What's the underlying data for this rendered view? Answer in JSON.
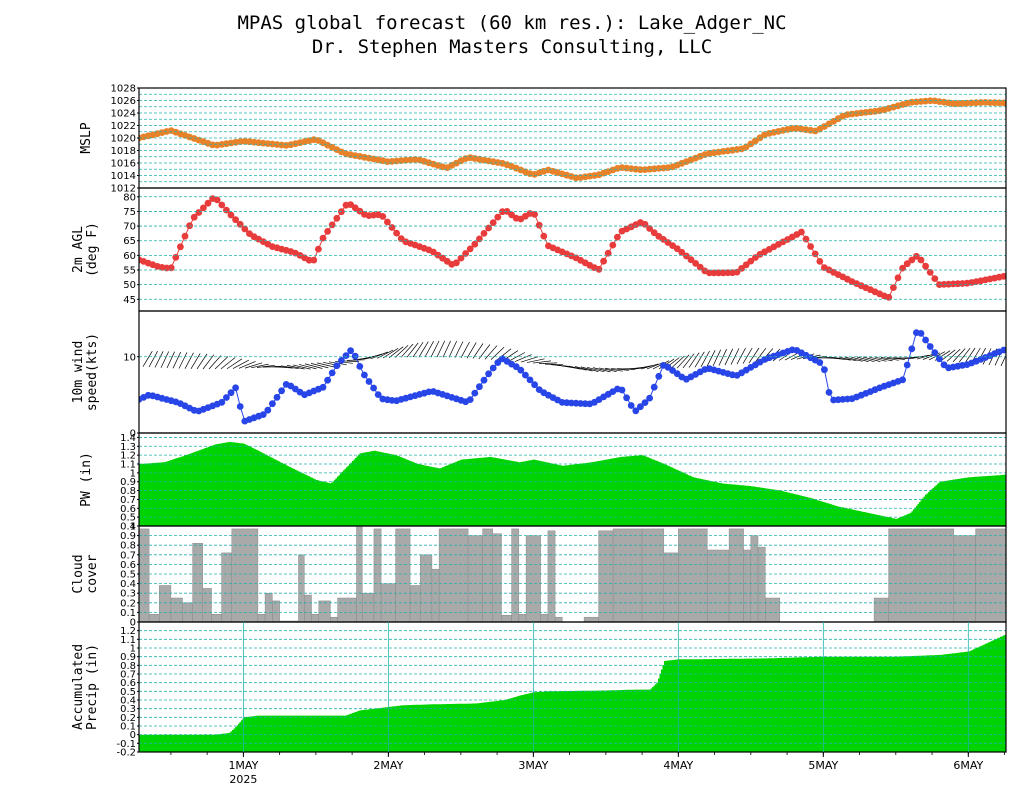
{
  "header": {
    "title": "MPAS global forecast (60 km res.): Lake_Adger_NC",
    "subtitle": "Dr. Stephen Masters Consulting, LLC"
  },
  "colors": {
    "grid": "#20b2aa",
    "mslp": "#e8822a",
    "temp": "#e83c3c",
    "wind": "#2846e8",
    "pw": "#00d400",
    "cloud": "#a9a9a9",
    "precip": "#00d400"
  },
  "chart_data": {
    "x_axis": {
      "ticks": [
        {
          "t": 1.0,
          "label": "1MAY",
          "sub": "2025"
        },
        {
          "t": 2.0,
          "label": "2MAY",
          "sub": ""
        },
        {
          "t": 3.0,
          "label": "3MAY",
          "sub": ""
        },
        {
          "t": 4.0,
          "label": "4MAY",
          "sub": ""
        },
        {
          "t": 5.0,
          "label": "5MAY",
          "sub": ""
        },
        {
          "t": 6.0,
          "label": "6MAY",
          "sub": ""
        }
      ],
      "range_days": [
        0.28,
        6.26
      ]
    },
    "panels": [
      {
        "id": "mslp",
        "type": "scatter-line",
        "ylabel": [
          "MSLP"
        ],
        "ylim": [
          1012,
          1028
        ],
        "yticks": [
          "1012",
          "1014",
          "1016",
          "1018",
          "1020",
          "1022",
          "1024",
          "1026",
          "1028"
        ],
        "t": [
          0.28,
          0.5,
          0.8,
          1.0,
          1.3,
          1.5,
          1.7,
          2.0,
          2.2,
          2.4,
          2.55,
          2.8,
          3.0,
          3.1,
          3.3,
          3.45,
          3.6,
          3.75,
          3.95,
          4.2,
          4.45,
          4.6,
          4.8,
          4.95,
          5.15,
          5.4,
          5.6,
          5.75,
          5.9,
          6.1,
          6.26
        ],
        "y": [
          1020,
          1021.2,
          1018.8,
          1019.5,
          1018.8,
          1019.8,
          1017.5,
          1016.2,
          1016.6,
          1015.2,
          1016.9,
          1015.9,
          1014.1,
          1014.9,
          1013.6,
          1014.1,
          1015.3,
          1014.9,
          1015.3,
          1017.5,
          1018.3,
          1020.6,
          1021.6,
          1021.1,
          1023.7,
          1024.4,
          1025.7,
          1026.0,
          1025.5,
          1025.7,
          1025.6
        ]
      },
      {
        "id": "temp",
        "type": "scatter-line",
        "ylabel": [
          "2m AGL",
          "(deg F)"
        ],
        "ylim": [
          41,
          83
        ],
        "yticks": [
          "45",
          "50",
          "55",
          "60",
          "65",
          "70",
          "75",
          "80"
        ],
        "t": [
          0.28,
          0.42,
          0.5,
          0.65,
          0.8,
          0.9,
          1.05,
          1.2,
          1.35,
          1.48,
          1.55,
          1.72,
          1.85,
          1.95,
          2.1,
          2.3,
          2.45,
          2.6,
          2.8,
          2.9,
          3.0,
          3.1,
          3.3,
          3.45,
          3.6,
          3.75,
          3.85,
          4.0,
          4.2,
          4.4,
          4.55,
          4.7,
          4.85,
          5.0,
          5.2,
          5.45,
          5.55,
          5.65,
          5.8,
          6.0,
          6.26
        ],
        "y": [
          58.5,
          56,
          55.5,
          72.5,
          80,
          74.5,
          67,
          63,
          61,
          57.7,
          66,
          78,
          73.5,
          74,
          65,
          61.5,
          56.5,
          64,
          75.7,
          72,
          75,
          63.3,
          59,
          55,
          68,
          71.5,
          67,
          62,
          54,
          54.1,
          60,
          64,
          68,
          56,
          51,
          45.5,
          56,
          60,
          50,
          50.5,
          53
        ]
      },
      {
        "id": "wind",
        "type": "scatter-line",
        "ylabel": [
          "10m wind",
          "speed(kts)"
        ],
        "ylim": [
          0,
          16
        ],
        "yticks": [
          "0",
          "10"
        ],
        "t": [
          0.28,
          0.35,
          0.55,
          0.68,
          0.85,
          0.95,
          1.0,
          1.15,
          1.3,
          1.42,
          1.55,
          1.65,
          1.75,
          1.82,
          1.95,
          2.05,
          2.3,
          2.55,
          2.7,
          2.78,
          2.9,
          3.05,
          3.2,
          3.4,
          3.6,
          3.7,
          3.8,
          3.9,
          4.05,
          4.2,
          4.4,
          4.6,
          4.8,
          5.0,
          5.05,
          5.2,
          5.4,
          5.55,
          5.65,
          5.75,
          5.85,
          6.0,
          6.26
        ],
        "y": [
          4.4,
          5,
          4,
          2.8,
          4,
          6,
          1.5,
          2.5,
          6.5,
          5,
          6,
          9,
          11,
          8,
          4.5,
          4.2,
          5.5,
          4,
          8,
          9.8,
          8.5,
          5.5,
          4,
          3.8,
          6,
          2.8,
          4.5,
          9,
          7,
          8.5,
          7.5,
          9.7,
          11,
          9,
          4.3,
          4.5,
          6,
          7,
          13.7,
          11,
          8.5,
          9,
          11
        ]
      },
      {
        "id": "pw",
        "type": "area-step",
        "ylabel": [
          "PW (in)"
        ],
        "ylim": [
          0.4,
          1.45
        ],
        "yticks": [
          "0.4",
          "0.5",
          "0.6",
          "0.7",
          "0.8",
          "0.9",
          "1",
          "1.1",
          "1.2",
          "1.3",
          "1.4"
        ],
        "t": [
          0.28,
          0.45,
          0.6,
          0.8,
          0.9,
          1.0,
          1.1,
          1.3,
          1.5,
          1.6,
          1.7,
          1.8,
          1.9,
          2.05,
          2.2,
          2.35,
          2.5,
          2.7,
          2.9,
          3.0,
          3.2,
          3.4,
          3.6,
          3.75,
          3.9,
          4.1,
          4.3,
          4.5,
          4.7,
          4.9,
          5.1,
          5.3,
          5.5,
          5.6,
          5.7,
          5.8,
          6.0,
          6.26
        ],
        "y": [
          1.1,
          1.12,
          1.2,
          1.32,
          1.35,
          1.33,
          1.25,
          1.08,
          0.92,
          0.88,
          1.05,
          1.22,
          1.25,
          1.2,
          1.1,
          1.05,
          1.15,
          1.18,
          1.12,
          1.15,
          1.08,
          1.12,
          1.18,
          1.2,
          1.1,
          0.95,
          0.88,
          0.85,
          0.8,
          0.72,
          0.62,
          0.55,
          0.48,
          0.55,
          0.75,
          0.9,
          0.95,
          0.98
        ]
      },
      {
        "id": "cloud",
        "type": "bar",
        "ylabel": [
          "Cloud",
          "cover"
        ],
        "ylim": [
          0,
          1
        ],
        "yticks": [
          "0",
          "0.1",
          "0.2",
          "0.3",
          "0.4",
          "0.5",
          "0.6",
          "0.7",
          "0.8",
          "0.9",
          "1"
        ],
        "bins": [
          [
            0.28,
            0.35,
            0.97
          ],
          [
            0.35,
            0.42,
            0.08
          ],
          [
            0.42,
            0.5,
            0.38
          ],
          [
            0.5,
            0.58,
            0.25
          ],
          [
            0.58,
            0.65,
            0.2
          ],
          [
            0.65,
            0.72,
            0.82
          ],
          [
            0.72,
            0.78,
            0.35
          ],
          [
            0.78,
            0.85,
            0.08
          ],
          [
            0.85,
            0.92,
            0.72
          ],
          [
            0.92,
            1.1,
            0.97
          ],
          [
            1.1,
            1.15,
            0.08
          ],
          [
            1.15,
            1.2,
            0.3
          ],
          [
            1.2,
            1.25,
            0.22
          ],
          [
            1.25,
            1.38,
            0.01
          ],
          [
            1.38,
            1.42,
            0.7
          ],
          [
            1.42,
            1.47,
            0.28
          ],
          [
            1.47,
            1.52,
            0.08
          ],
          [
            1.52,
            1.6,
            0.22
          ],
          [
            1.6,
            1.65,
            0.05
          ],
          [
            1.65,
            1.78,
            0.25
          ],
          [
            1.78,
            1.82,
            1.0
          ],
          [
            1.82,
            1.9,
            0.3
          ],
          [
            1.9,
            1.95,
            0.97
          ],
          [
            1.95,
            2.05,
            0.4
          ],
          [
            2.05,
            2.15,
            0.97
          ],
          [
            2.15,
            2.22,
            0.38
          ],
          [
            2.22,
            2.3,
            0.7
          ],
          [
            2.3,
            2.35,
            0.55
          ],
          [
            2.35,
            2.55,
            0.97
          ],
          [
            2.55,
            2.65,
            0.9
          ],
          [
            2.65,
            2.72,
            0.97
          ],
          [
            2.72,
            2.78,
            0.92
          ],
          [
            2.78,
            2.85,
            0.07
          ],
          [
            2.85,
            2.9,
            0.97
          ],
          [
            2.9,
            2.95,
            0.08
          ],
          [
            2.95,
            3.05,
            0.9
          ],
          [
            3.05,
            3.1,
            0.08
          ],
          [
            3.1,
            3.15,
            0.95
          ],
          [
            3.15,
            3.2,
            0.05
          ],
          [
            3.2,
            3.35,
            0.0
          ],
          [
            3.35,
            3.45,
            0.05
          ],
          [
            3.45,
            3.55,
            0.95
          ],
          [
            3.55,
            3.75,
            0.97
          ],
          [
            3.75,
            3.9,
            0.97
          ],
          [
            3.9,
            4.0,
            0.72
          ],
          [
            4.0,
            4.2,
            0.97
          ],
          [
            4.2,
            4.35,
            0.75
          ],
          [
            4.35,
            4.45,
            0.97
          ],
          [
            4.45,
            4.5,
            0.75
          ],
          [
            4.5,
            4.55,
            0.9
          ],
          [
            4.55,
            4.6,
            0.78
          ],
          [
            4.6,
            4.7,
            0.25
          ],
          [
            4.7,
            5.35,
            0.0
          ],
          [
            5.35,
            5.45,
            0.25
          ],
          [
            5.45,
            5.9,
            0.97
          ],
          [
            5.9,
            6.05,
            0.9
          ],
          [
            6.05,
            6.26,
            0.97
          ]
        ]
      },
      {
        "id": "precip",
        "type": "area-step",
        "ylabel": [
          "Accumulated",
          "Precip (in)"
        ],
        "ylim": [
          -0.2,
          1.3
        ],
        "yticks": [
          "-0.2",
          "-0.1",
          "0",
          "0.1",
          "0.2",
          "0.3",
          "0.4",
          "0.5",
          "0.6",
          "0.7",
          "0.8",
          "0.9",
          "1",
          "1.1",
          "1.2"
        ],
        "t": [
          0.28,
          0.8,
          0.9,
          0.95,
          1.0,
          1.1,
          1.5,
          1.7,
          1.8,
          1.9,
          2.0,
          2.1,
          2.3,
          2.6,
          2.8,
          2.9,
          3.0,
          3.1,
          3.5,
          3.7,
          3.8,
          3.85,
          3.9,
          4.0,
          4.1,
          4.6,
          5.0,
          5.5,
          5.8,
          6.0,
          6.26
        ],
        "y": [
          0.0,
          0.0,
          0.02,
          0.1,
          0.2,
          0.22,
          0.22,
          0.22,
          0.28,
          0.3,
          0.32,
          0.34,
          0.35,
          0.36,
          0.4,
          0.45,
          0.49,
          0.5,
          0.51,
          0.52,
          0.52,
          0.6,
          0.85,
          0.87,
          0.87,
          0.88,
          0.9,
          0.9,
          0.92,
          0.96,
          1.16
        ]
      }
    ]
  }
}
